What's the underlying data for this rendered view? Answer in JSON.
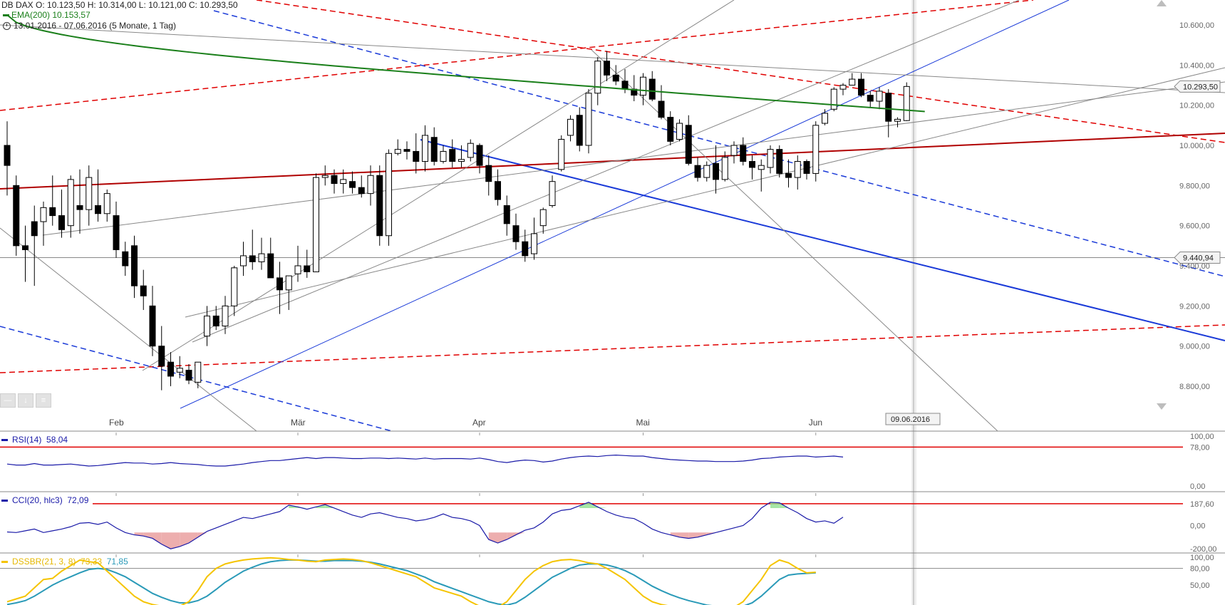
{
  "header": {
    "ohlc": "DB DAX   O: 10.123,50   H: 10.314,00   L: 10.121,00   C: 10.293,50",
    "ema": "EMA(200)  10.153,57",
    "range": "13.01.2016 - 07.06.2016 (5 Monate, 1 Tag)"
  },
  "colors": {
    "candle_up": "#ffffff",
    "candle_down": "#000000",
    "ema": "#1a7f1a",
    "rsi": "#1a1aa8",
    "cci": "#1a1aa8",
    "dss_fast": "#f5c400",
    "dss_slow": "#2a9ab8",
    "trend_red": "#e00000",
    "trend_blue": "#1a3ad8",
    "support_dark_red": "#b00000",
    "grid_gray": "#888888"
  },
  "price_axis": {
    "ticks": [
      "10.600,00",
      "10.400,00",
      "10.200,00",
      "10.000,00",
      "9.800,00",
      "9.600,00",
      "9.400,00",
      "9.200,00",
      "9.000,00",
      "8.800,00"
    ],
    "tick_values": [
      10600,
      10400,
      10200,
      10000,
      9800,
      9600,
      9400,
      9200,
      9000,
      8800
    ],
    "last_price_tag": "10.293,50",
    "last_price_value": 10293.5,
    "level_tag": "9.440,94",
    "level_value": 9440.94
  },
  "time_axis": {
    "labels": [
      "Feb",
      "Mär",
      "Apr",
      "Mai",
      "Jun"
    ],
    "label_index": [
      12,
      32,
      52,
      70,
      89
    ],
    "cursor_date": "09.06.2016"
  },
  "rsi": {
    "label": "RSI(14)",
    "value": "58,04",
    "ticks": [
      "100,00",
      "78,00",
      "0,00"
    ],
    "upper_level": 78,
    "values": [
      44,
      42,
      42,
      45,
      42,
      42,
      43,
      44,
      42,
      40,
      41,
      43,
      45,
      47,
      46,
      46,
      44,
      45,
      47,
      45,
      44,
      43,
      41,
      40,
      40,
      42,
      44,
      47,
      49,
      51,
      51,
      53,
      55,
      57,
      55,
      57,
      57,
      56,
      55,
      55,
      56,
      56,
      55,
      56,
      55,
      54,
      56,
      54,
      55,
      55,
      55,
      54,
      56,
      53,
      49,
      47,
      50,
      52,
      51,
      48,
      50,
      54,
      57,
      59,
      60,
      59,
      61,
      62,
      61,
      60,
      60,
      57,
      55,
      53,
      52,
      51,
      50,
      50,
      49,
      49,
      49,
      50,
      52,
      55,
      56,
      58,
      59,
      60,
      60,
      58,
      59,
      60,
      58
    ]
  },
  "cci": {
    "label": "CCI(20, hlc3)",
    "value": "72,09",
    "ticks": [
      "187,60",
      "0,00",
      "-200,00"
    ],
    "upper_level": 187.6,
    "values": [
      -55,
      -60,
      -45,
      -30,
      -60,
      -45,
      -30,
      -10,
      20,
      25,
      10,
      30,
      -20,
      -60,
      -80,
      -90,
      -110,
      -160,
      -200,
      -180,
      -150,
      -100,
      -50,
      -20,
      10,
      40,
      70,
      60,
      80,
      100,
      120,
      175,
      160,
      140,
      160,
      180,
      150,
      120,
      90,
      70,
      100,
      110,
      90,
      70,
      60,
      40,
      50,
      70,
      100,
      70,
      60,
      40,
      0,
      -120,
      -150,
      -120,
      -80,
      -40,
      -20,
      30,
      100,
      130,
      140,
      170,
      200,
      160,
      120,
      90,
      70,
      60,
      20,
      -30,
      -60,
      -80,
      -100,
      -110,
      -100,
      -80,
      -60,
      -40,
      -20,
      0,
      60,
      150,
      200,
      195,
      150,
      110,
      60,
      30,
      40,
      20,
      72
    ]
  },
  "dssbr": {
    "label": "DSSBR(21, 3, 8)",
    "value_fast": "73,33",
    "value_slow": "71,85",
    "ticks": [
      "100,00",
      "80,00",
      "50,00"
    ],
    "level": 80,
    "fast": [
      20,
      25,
      30,
      45,
      60,
      62,
      75,
      85,
      95,
      92,
      90,
      75,
      60,
      45,
      30,
      20,
      15,
      12,
      10,
      12,
      20,
      40,
      65,
      80,
      88,
      92,
      95,
      97,
      98,
      99,
      98,
      96,
      95,
      93,
      92,
      95,
      96,
      97,
      96,
      94,
      90,
      85,
      80,
      75,
      70,
      65,
      55,
      45,
      40,
      35,
      30,
      20,
      12,
      8,
      10,
      20,
      40,
      60,
      75,
      85,
      92,
      95,
      96,
      94,
      90,
      88,
      80,
      70,
      60,
      45,
      30,
      20,
      15,
      12,
      10,
      8,
      6,
      5,
      5,
      6,
      10,
      20,
      40,
      60,
      85,
      95,
      90,
      80,
      72,
      73
    ]
  },
  "dss_slow_values": [
    15,
    18,
    22,
    30,
    40,
    50,
    58,
    65,
    72,
    78,
    80,
    78,
    72,
    65,
    55,
    45,
    35,
    28,
    22,
    18,
    18,
    22,
    30,
    42,
    55,
    65,
    75,
    82,
    88,
    92,
    94,
    95,
    95,
    94,
    93,
    93,
    94,
    94,
    94,
    93,
    91,
    88,
    84,
    80,
    76,
    70,
    64,
    56,
    50,
    44,
    38,
    32,
    26,
    20,
    16,
    14,
    18,
    28,
    40,
    52,
    64,
    72,
    80,
    86,
    88,
    88,
    86,
    82,
    76,
    68,
    58,
    48,
    40,
    33,
    27,
    22,
    18,
    14,
    12,
    10,
    10,
    12,
    18,
    30,
    45,
    60,
    68,
    70,
    71,
    72
  ],
  "chart_data": [
    {
      "type": "candlestick",
      "title": "DB DAX",
      "period": "13.01.2016 - 07.06.2016 (5 Monate, 1 Tag)",
      "xlabel": "",
      "ylabel": "",
      "ylim": [
        8700,
        10700
      ],
      "x_labels": [
        "Feb",
        "Mär",
        "Apr",
        "Mai",
        "Jun"
      ],
      "ohlc": [
        [
          10000,
          10120,
          9750,
          9900
        ],
        [
          9800,
          9850,
          9450,
          9500
        ],
        [
          9500,
          9600,
          9320,
          9480
        ],
        [
          9620,
          9700,
          9300,
          9550
        ],
        [
          9620,
          9720,
          9500,
          9690
        ],
        [
          9690,
          9850,
          9600,
          9650
        ],
        [
          9650,
          9780,
          9540,
          9580
        ],
        [
          9600,
          9850,
          9540,
          9830
        ],
        [
          9700,
          9880,
          9560,
          9680
        ],
        [
          9680,
          9900,
          9600,
          9840
        ],
        [
          9700,
          9880,
          9620,
          9660
        ],
        [
          9660,
          9780,
          9620,
          9760
        ],
        [
          9650,
          9720,
          9440,
          9480
        ],
        [
          9470,
          9520,
          9350,
          9400
        ],
        [
          9500,
          9550,
          9240,
          9300
        ],
        [
          9300,
          9380,
          9180,
          9250
        ],
        [
          9200,
          9300,
          8950,
          9000
        ],
        [
          9000,
          9100,
          8780,
          8900
        ],
        [
          8920,
          8970,
          8800,
          8850
        ],
        [
          8870,
          8950,
          8840,
          8890
        ],
        [
          8880,
          8910,
          8810,
          8830
        ],
        [
          8820,
          8900,
          8790,
          8920
        ],
        [
          9050,
          9200,
          9000,
          9150
        ],
        [
          9150,
          9200,
          9080,
          9100
        ],
        [
          9100,
          9250,
          9060,
          9200
        ],
        [
          9200,
          9400,
          9150,
          9390
        ],
        [
          9400,
          9520,
          9350,
          9450
        ],
        [
          9450,
          9580,
          9380,
          9420
        ],
        [
          9420,
          9540,
          9380,
          9460
        ],
        [
          9460,
          9540,
          9350,
          9340
        ],
        [
          9340,
          9420,
          9160,
          9280
        ],
        [
          9280,
          9350,
          9180,
          9350
        ],
        [
          9360,
          9500,
          9320,
          9400
        ],
        [
          9400,
          9480,
          9340,
          9370
        ],
        [
          9370,
          9860,
          9380,
          9840
        ],
        [
          9840,
          9900,
          9800,
          9850
        ],
        [
          9850,
          9880,
          9760,
          9810
        ],
        [
          9810,
          9880,
          9760,
          9830
        ],
        [
          9820,
          9870,
          9760,
          9790
        ],
        [
          9790,
          9850,
          9740,
          9760
        ],
        [
          9760,
          9900,
          9700,
          9850
        ],
        [
          9850,
          9900,
          9500,
          9550
        ],
        [
          9550,
          9980,
          9500,
          9960
        ],
        [
          9960,
          10030,
          9950,
          9980
        ],
        [
          9980,
          10020,
          9930,
          9970
        ],
        [
          9970,
          10060,
          9860,
          9920
        ],
        [
          9920,
          10100,
          9870,
          10050
        ],
        [
          10040,
          10090,
          9900,
          9920
        ],
        [
          9920,
          10000,
          9910,
          9970
        ],
        [
          9980,
          10030,
          9890,
          9920
        ],
        [
          9920,
          10000,
          9890,
          9930
        ],
        [
          9940,
          10030,
          9920,
          10010
        ],
        [
          10000,
          10010,
          9860,
          9900
        ],
        [
          9900,
          9950,
          9750,
          9820
        ],
        [
          9820,
          9880,
          9700,
          9730
        ],
        [
          9700,
          9750,
          9550,
          9610
        ],
        [
          9600,
          9660,
          9480,
          9520
        ],
        [
          9520,
          9580,
          9420,
          9450
        ],
        [
          9460,
          9640,
          9430,
          9560
        ],
        [
          9600,
          9690,
          9560,
          9680
        ],
        [
          9700,
          9850,
          9690,
          9820
        ],
        [
          9880,
          10050,
          9870,
          10030
        ],
        [
          10050,
          10150,
          10020,
          10130
        ],
        [
          10150,
          10190,
          9970,
          10000
        ],
        [
          10000,
          10280,
          9960,
          10260
        ],
        [
          10260,
          10440,
          10200,
          10420
        ],
        [
          10420,
          10470,
          10320,
          10350
        ],
        [
          10350,
          10400,
          10300,
          10320
        ],
        [
          10320,
          10380,
          10260,
          10280
        ],
        [
          10280,
          10350,
          10220,
          10250
        ],
        [
          10250,
          10360,
          10200,
          10340
        ],
        [
          10330,
          10370,
          10220,
          10230
        ],
        [
          10220,
          10300,
          10130,
          10140
        ],
        [
          10140,
          10170,
          10000,
          10020
        ],
        [
          10030,
          10130,
          10020,
          10110
        ],
        [
          10100,
          10150,
          9900,
          9910
        ],
        [
          9900,
          9940,
          9820,
          9840
        ],
        [
          9840,
          9920,
          9820,
          9900
        ],
        [
          9910,
          10000,
          9760,
          9830
        ],
        [
          9830,
          9970,
          9820,
          9940
        ],
        [
          9950,
          10020,
          9910,
          10000
        ],
        [
          10000,
          10040,
          9900,
          9920
        ],
        [
          9920,
          9950,
          9830,
          9890
        ],
        [
          9880,
          9930,
          9770,
          9900
        ],
        [
          9890,
          10000,
          9860,
          9980
        ],
        [
          9980,
          10000,
          9840,
          9860
        ],
        [
          9860,
          9930,
          9790,
          9840
        ],
        [
          9840,
          9950,
          9780,
          9920
        ],
        [
          9920,
          9930,
          9830,
          9860
        ],
        [
          9860,
          10120,
          9820,
          10100
        ],
        [
          10110,
          10180,
          10100,
          10160
        ],
        [
          10180,
          10290,
          10170,
          10280
        ],
        [
          10280,
          10310,
          10250,
          10300
        ],
        [
          10300,
          10360,
          10300,
          10330
        ],
        [
          10330,
          10360,
          10240,
          10250
        ],
        [
          10250,
          10270,
          10190,
          10220
        ],
        [
          10220,
          10290,
          10180,
          10270
        ],
        [
          10260,
          10280,
          10040,
          10120
        ],
        [
          10120,
          10140,
          10090,
          10130
        ],
        [
          10123.5,
          10314,
          10121,
          10293.5
        ]
      ],
      "series": [
        {
          "name": "EMA(200)",
          "last": 10153.57
        }
      ]
    },
    {
      "type": "line",
      "title": "RSI(14)",
      "ylim": [
        0,
        100
      ]
    },
    {
      "type": "line",
      "title": "CCI(20, hlc3)",
      "ylim": [
        -260,
        260
      ]
    },
    {
      "type": "line",
      "title": "DSSBR(21, 3, 8)",
      "ylim": [
        0,
        100
      ]
    }
  ]
}
